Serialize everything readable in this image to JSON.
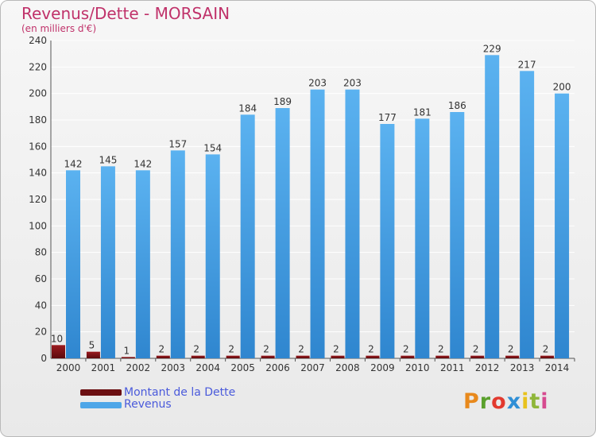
{
  "title": "Revenus/Dette - MORSAIN",
  "subtitle": "(en milliers d'€)",
  "logo_text": "Proxiti",
  "legend": [
    {
      "label": "Montant de la Dette",
      "color": "#6b0f12"
    },
    {
      "label": "Revenus",
      "color": "#4ea6e8"
    }
  ],
  "colors": {
    "debt": "#7a1014",
    "revenue": "#4ea6e8",
    "grid": "#ffffff",
    "title": "#c0326a"
  },
  "chart_data": {
    "type": "bar",
    "categories": [
      "2000",
      "2001",
      "2002",
      "2003",
      "2004",
      "2005",
      "2006",
      "2007",
      "2008",
      "2009",
      "2010",
      "2011",
      "2012",
      "2013",
      "2014"
    ],
    "series": [
      {
        "name": "Montant de la Dette",
        "values": [
          10,
          5,
          1,
          2,
          2,
          2,
          2,
          2,
          2,
          2,
          2,
          2,
          2,
          2,
          2
        ]
      },
      {
        "name": "Revenus",
        "values": [
          142,
          145,
          142,
          157,
          154,
          184,
          189,
          203,
          203,
          177,
          181,
          186,
          229,
          217,
          200
        ]
      }
    ],
    "ylim": [
      0,
      240
    ],
    "yticks": [
      0,
      20,
      40,
      60,
      80,
      100,
      120,
      140,
      160,
      180,
      200,
      220,
      240
    ],
    "grid": true,
    "legend_position": "bottom-left"
  }
}
